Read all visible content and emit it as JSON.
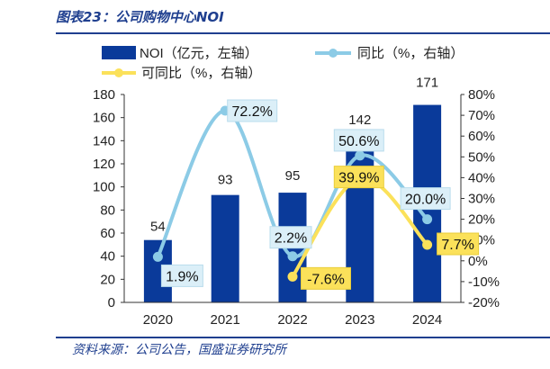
{
  "figure": {
    "title": "图表23：公司购物中心NOI",
    "source": "资料来源：公司公告，国盛证券研究所"
  },
  "colors": {
    "bar": "#0a3a9a",
    "yoy_line": "#8ccbe6",
    "comparable_line": "#fbe15a",
    "yoy_label_bg": "#dbeff8",
    "comparable_label_bg": "#fbe15a",
    "axis": "#333333",
    "rule": "#1f3f8f"
  },
  "chart_data": {
    "type": "bar",
    "title": "",
    "categories": [
      "2020",
      "2021",
      "2022",
      "2023",
      "2024"
    ],
    "legend_position": "top",
    "grid": false,
    "left_axis": {
      "min": 0,
      "max": 180,
      "step": 20,
      "ticks": [
        "0",
        "20",
        "40",
        "60",
        "80",
        "100",
        "120",
        "140",
        "160",
        "180"
      ]
    },
    "right_axis": {
      "min": -20,
      "max": 80,
      "step": 10,
      "ticks": [
        "-20%",
        "-10%",
        "0%",
        "10%",
        "20%",
        "30%",
        "40%",
        "50%",
        "60%",
        "70%",
        "80%"
      ]
    },
    "series": [
      {
        "name": "NOI（亿元，左轴）",
        "type": "bar",
        "axis": "left",
        "values": [
          54,
          93,
          95,
          142,
          171
        ],
        "labels": [
          "54",
          "93",
          "95",
          "142",
          "171"
        ]
      },
      {
        "name": "同比（%，右轴）",
        "type": "line",
        "axis": "right",
        "values": [
          1.9,
          72.2,
          2.2,
          50.6,
          20.0
        ],
        "labels": [
          "1.9%",
          "72.2%",
          "2.2%",
          "50.6%",
          "20.0%"
        ]
      },
      {
        "name": "可同比（%，右轴）",
        "type": "line",
        "axis": "right",
        "values": [
          null,
          null,
          -7.6,
          39.9,
          7.7
        ],
        "labels": [
          null,
          null,
          "-7.6%",
          "39.9%",
          "7.7%"
        ]
      }
    ]
  }
}
